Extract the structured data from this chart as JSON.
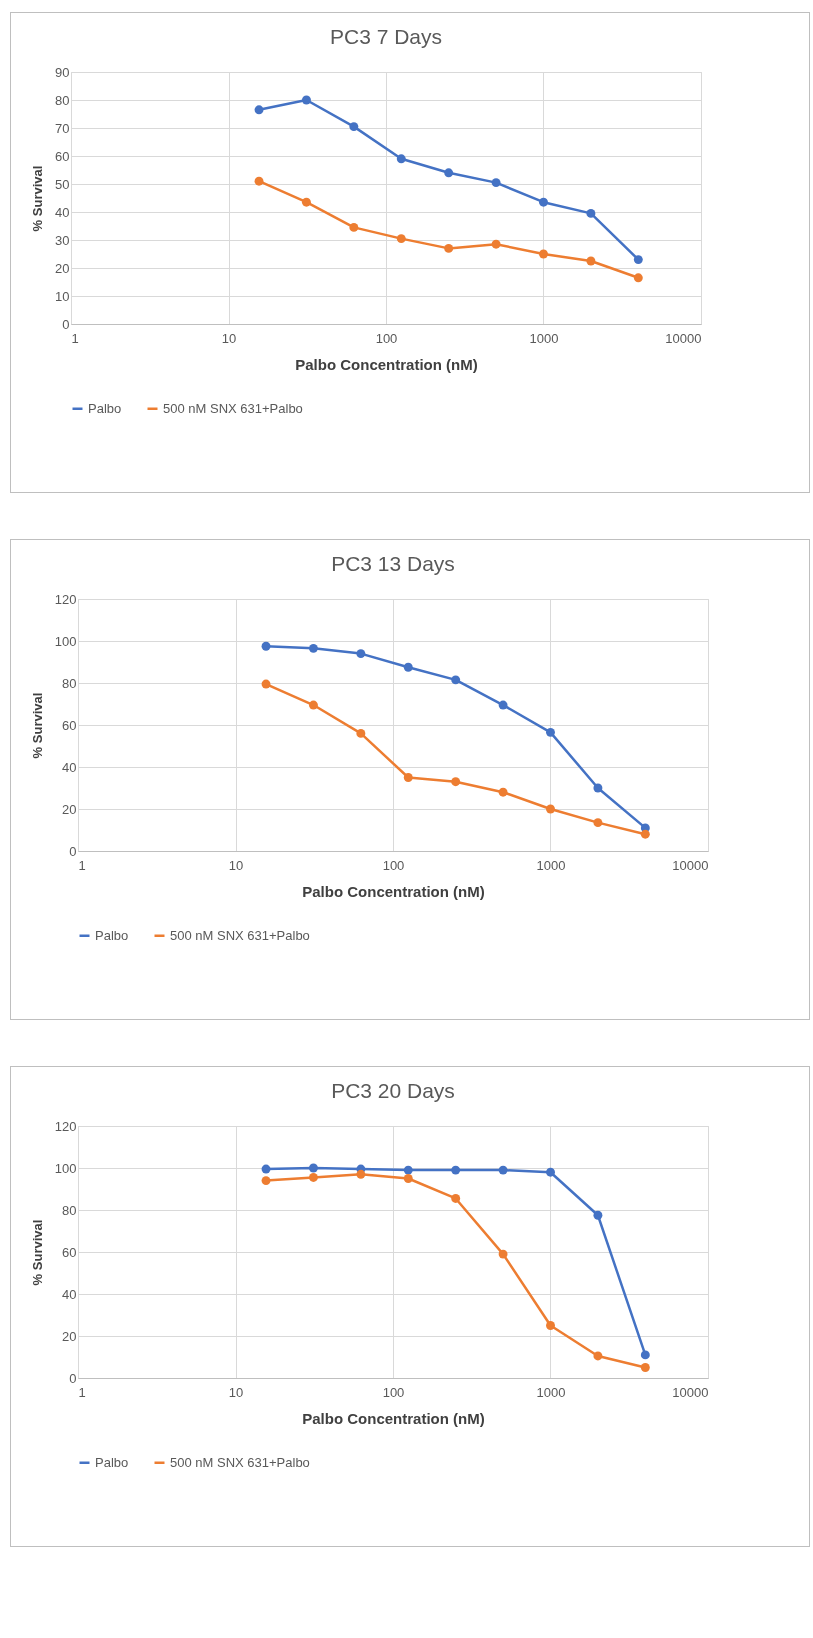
{
  "chart_data": [
    {
      "type": "line",
      "title": "PC3 7 Days",
      "xlabel": "Palbo Concentration (nM)",
      "ylabel": "% Survival",
      "x": [
        15.625,
        31.25,
        62.5,
        125,
        250,
        500,
        1000,
        2000,
        4000
      ],
      "series": [
        {
          "name": "Palbo",
          "color": "#4472c4",
          "values": [
            76.5,
            80,
            70.5,
            59,
            54,
            50.5,
            43.5,
            39.5,
            23
          ]
        },
        {
          "name": "500 nM SNX 631+Palbo",
          "color": "#ed7d31",
          "values": [
            51,
            43.5,
            34.5,
            30.5,
            27,
            28.5,
            25,
            22.5,
            16.5
          ]
        }
      ],
      "log": "x",
      "xlim": [
        1,
        10000
      ],
      "xticks": [
        1,
        10,
        100,
        1000,
        10000
      ],
      "ylim": [
        0,
        90
      ],
      "yticks": [
        0,
        10,
        20,
        30,
        40,
        50,
        60,
        70,
        80,
        90
      ],
      "grid": true,
      "legend": "bottom",
      "marker": "circle",
      "line_style": "solid"
    },
    {
      "type": "line",
      "title": "PC3 13 Days",
      "xlabel": "Palbo Concentration (nM)",
      "ylabel": "% Survival",
      "x": [
        15.625,
        31.25,
        62.5,
        125,
        250,
        500,
        1000,
        2000,
        4000
      ],
      "series": [
        {
          "name": "Palbo",
          "color": "#4472c4",
          "values": [
            97.5,
            96.5,
            94,
            87.5,
            81.5,
            69.5,
            56.5,
            30,
            11
          ]
        },
        {
          "name": "500 nM SNX 631+Palbo",
          "color": "#ed7d31",
          "values": [
            79.5,
            69.5,
            56,
            35,
            33,
            28,
            20,
            13.5,
            8
          ]
        }
      ],
      "log": "x",
      "xlim": [
        1,
        10000
      ],
      "xticks": [
        1,
        10,
        100,
        1000,
        10000
      ],
      "ylim": [
        0,
        120
      ],
      "yticks": [
        0,
        20,
        40,
        60,
        80,
        100,
        120
      ],
      "grid": true,
      "legend": "bottom",
      "marker": "circle",
      "line_style": "solid"
    },
    {
      "type": "line",
      "title": "PC3 20 Days",
      "xlabel": "Palbo Concentration (nM)",
      "ylabel": "% Survival",
      "x": [
        15.625,
        31.25,
        62.5,
        125,
        250,
        500,
        1000,
        2000,
        4000
      ],
      "series": [
        {
          "name": "Palbo",
          "color": "#4472c4",
          "values": [
            99.5,
            100,
            99.5,
            99,
            99,
            99,
            98,
            77.5,
            11
          ]
        },
        {
          "name": "500 nM SNX 631+Palbo",
          "color": "#ed7d31",
          "values": [
            94,
            95.5,
            97,
            95,
            85.5,
            59,
            25,
            10.5,
            5
          ]
        }
      ],
      "log": "x",
      "xlim": [
        1,
        10000
      ],
      "xticks": [
        1,
        10,
        100,
        1000,
        10000
      ],
      "ylim": [
        0,
        120
      ],
      "yticks": [
        0,
        20,
        40,
        60,
        80,
        100,
        120
      ],
      "grid": true,
      "legend": "bottom",
      "marker": "circle",
      "line_style": "solid"
    }
  ]
}
